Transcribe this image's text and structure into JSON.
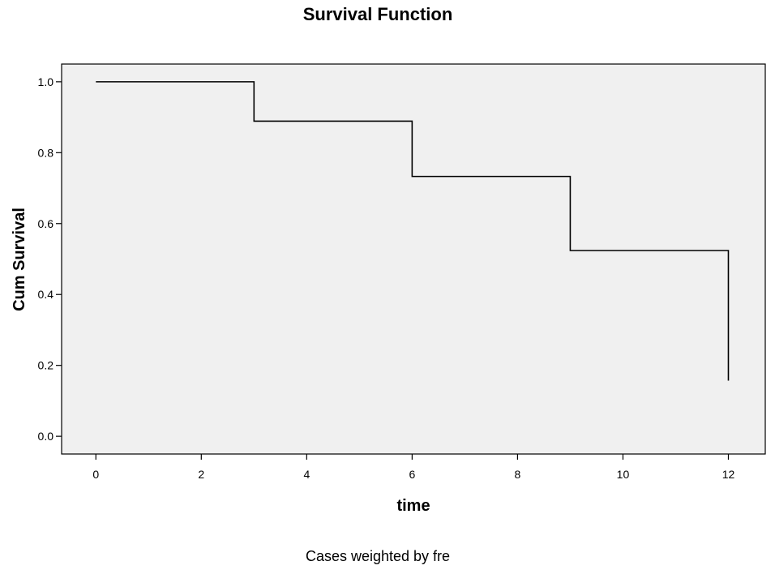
{
  "chart_data": {
    "type": "line",
    "step": true,
    "title": "Survival Function",
    "xlabel": "time",
    "ylabel": "Cum Survival",
    "footnote": "Cases weighted by fre",
    "xlim": [
      -0.65,
      12.7
    ],
    "ylim": [
      -0.05,
      1.05
    ],
    "x_ticks": [
      0,
      2,
      4,
      6,
      8,
      10,
      12
    ],
    "x_tick_labels": [
      "0",
      "2",
      "4",
      "6",
      "8",
      "10",
      "12"
    ],
    "y_ticks": [
      0.0,
      0.2,
      0.4,
      0.6,
      0.8,
      1.0
    ],
    "y_tick_labels": [
      "0.0",
      "0.2",
      "0.4",
      "0.6",
      "0.8",
      "1.0"
    ],
    "grid": false,
    "legend": "none",
    "plot_background": "#f0f0f0",
    "line_color": "#000000",
    "series": [
      {
        "points": [
          {
            "x": 0,
            "y": 1.0
          },
          {
            "x": 3,
            "y": 0.889
          },
          {
            "x": 6,
            "y": 0.733
          },
          {
            "x": 9,
            "y": 0.524
          },
          {
            "x": 12,
            "y": 0.157
          }
        ]
      }
    ]
  }
}
